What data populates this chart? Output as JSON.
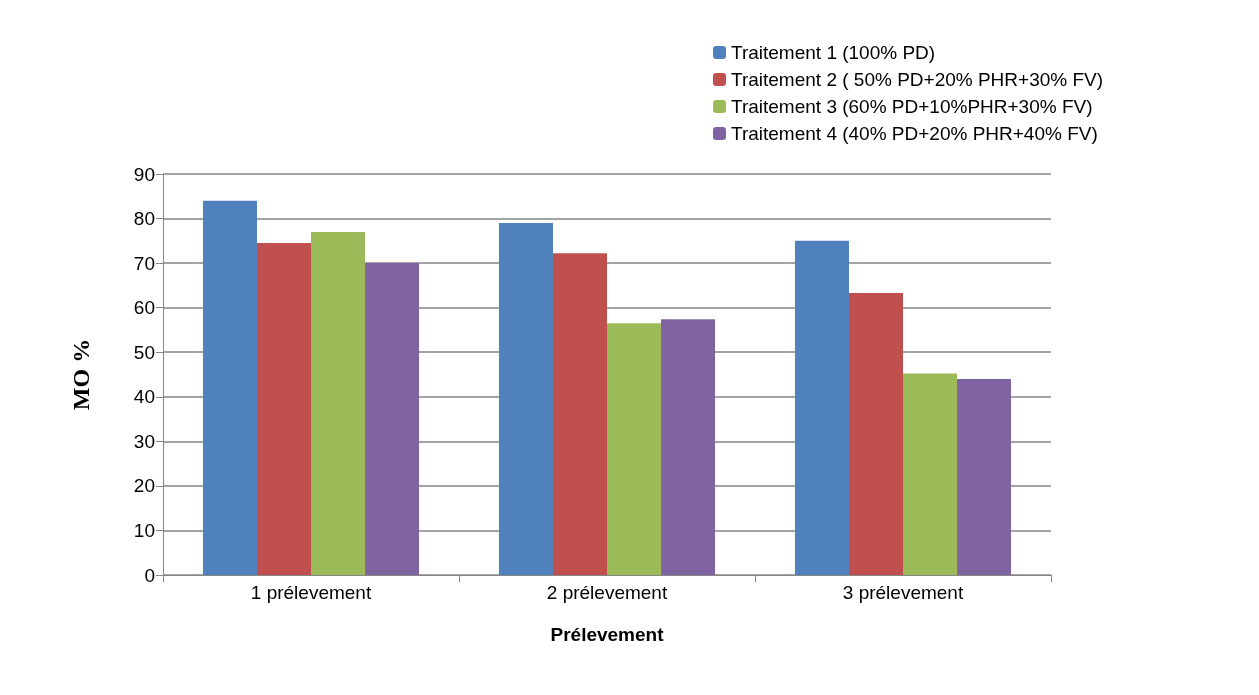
{
  "chart_data": {
    "type": "bar",
    "xlabel": "Prélevement",
    "ylabel": "MO %",
    "categories": [
      "1 prélevement",
      "2 prélevement",
      "3 prélevement"
    ],
    "series": [
      {
        "name": "Traitement 1 (100% PD)",
        "color": "#4f81bd",
        "values": [
          84,
          79,
          75
        ]
      },
      {
        "name": "Traitement 2 ( 50% PD+20% PHR+30% FV)",
        "color": "#c0504d",
        "values": [
          74.5,
          72.2,
          63.3
        ]
      },
      {
        "name": "Traitement 3 (60% PD+10%PHR+30% FV)",
        "color": "#9bbb59",
        "values": [
          77,
          56.5,
          45.2
        ]
      },
      {
        "name": "Traitement 4 (40% PD+20% PHR+40% FV)",
        "color": "#8064a2",
        "values": [
          70,
          57.4,
          44
        ]
      }
    ],
    "ylim": [
      0,
      90
    ],
    "yticks": [
      0,
      10,
      20,
      30,
      40,
      50,
      60,
      70,
      80,
      90
    ],
    "grid": "y",
    "legend": "top right"
  }
}
